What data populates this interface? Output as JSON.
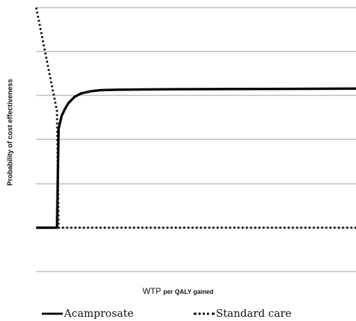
{
  "chart_data": {
    "type": "line",
    "title": "",
    "xlabel_main": "WTP",
    "xlabel_sub": "per QALY gained",
    "ylabel": "Probability of cost effectiveness",
    "xlim": [
      0,
      100
    ],
    "ylim": [
      0,
      1
    ],
    "grid": true,
    "legend_position": "bottom",
    "series": [
      {
        "name": "Acamprosate",
        "style": "solid",
        "color": "#000000",
        "x": [
          0,
          6.5,
          7,
          8,
          9,
          10,
          12,
          14,
          17,
          20,
          25,
          30,
          40,
          60,
          80,
          100
        ],
        "y": [
          0,
          0,
          0.45,
          0.51,
          0.54,
          0.565,
          0.595,
          0.61,
          0.62,
          0.625,
          0.627,
          0.628,
          0.629,
          0.63,
          0.631,
          0.632
        ]
      },
      {
        "name": "Standard care",
        "style": "dotted",
        "color": "#000000",
        "x": [
          0,
          6.5,
          7,
          100
        ],
        "y": [
          1.0,
          0.53,
          0,
          0
        ]
      }
    ]
  }
}
